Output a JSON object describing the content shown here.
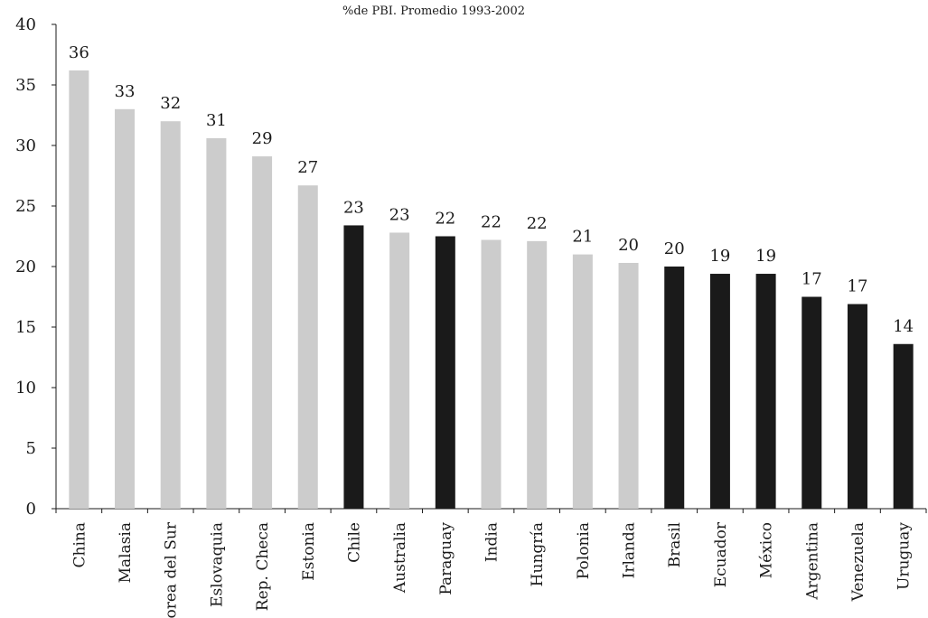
{
  "chart_data": {
    "type": "bar",
    "subtitle": "%de PBI. Promedio 1993-2002",
    "categories": [
      "China",
      "Malasia",
      "Corea del Sur",
      "Eslovaquia",
      "Rep. Checa",
      "Estonia",
      "Chile",
      "Australia",
      "Paraguay",
      "India",
      "Hungría",
      "Polonia",
      "Irlanda",
      "Brasil",
      "Ecuador",
      "México",
      "Argentina",
      "Venezuela",
      "Uruguay"
    ],
    "values": [
      36.2,
      33.0,
      32.0,
      30.6,
      29.1,
      26.7,
      23.4,
      22.8,
      22.5,
      22.2,
      22.1,
      21.0,
      20.3,
      20.0,
      19.4,
      19.4,
      17.5,
      16.9,
      13.6
    ],
    "data_labels": [
      "36",
      "33",
      "32",
      "31",
      "29",
      "27",
      "23",
      "23",
      "22",
      "22",
      "22",
      "21",
      "20",
      "20",
      "19",
      "19",
      "17",
      "17",
      "14"
    ],
    "highlighted": [
      false,
      false,
      false,
      false,
      false,
      false,
      true,
      false,
      true,
      false,
      false,
      false,
      false,
      true,
      true,
      true,
      true,
      true,
      true
    ],
    "ylim": [
      0,
      40
    ],
    "yticks": [
      "0",
      "5",
      "10",
      "15",
      "20",
      "25",
      "30",
      "35",
      "40"
    ],
    "colors": {
      "default": "#cccccc",
      "highlight": "#1a1a1a"
    },
    "grid": false,
    "legend": "none"
  }
}
